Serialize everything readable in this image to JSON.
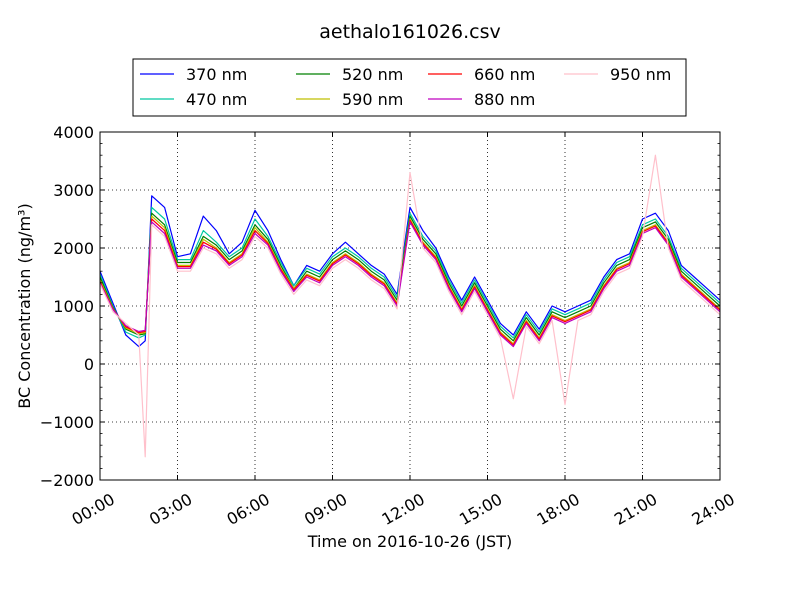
{
  "chart_data": {
    "type": "line",
    "title": "aethalo161026.csv",
    "xlabel": "Time on 2016-10-26 (JST)",
    "ylabel": "BC Concentration (ng/m³)",
    "xlim": [
      0,
      24
    ],
    "ylim": [
      -2000,
      4000
    ],
    "x_tick_labels": [
      "00:00",
      "03:00",
      "06:00",
      "09:00",
      "12:00",
      "15:00",
      "18:00",
      "21:00",
      "24:00"
    ],
    "y_tick_labels": [
      "−2000",
      "−1000",
      "0",
      "1000",
      "2000",
      "3000",
      "4000"
    ],
    "grid": true,
    "legend_position": "top",
    "x_hours": [
      0,
      0.5,
      1,
      1.5,
      1.75,
      2,
      2.5,
      3,
      3.5,
      4,
      4.5,
      5,
      5.5,
      6,
      6.5,
      7,
      7.5,
      8,
      8.5,
      9,
      9.5,
      10,
      10.5,
      11,
      11.5,
      12,
      12.5,
      13,
      13.5,
      14,
      14.5,
      15,
      15.5,
      16,
      16.5,
      17,
      17.5,
      18,
      18.5,
      19,
      19.5,
      20,
      20.5,
      21,
      21.5,
      22,
      22.5,
      23,
      23.5,
      24
    ],
    "series": [
      {
        "name": "370 nm",
        "color": "#0000ff",
        "values": [
          1600,
          1050,
          500,
          300,
          400,
          2900,
          2700,
          1850,
          1900,
          2550,
          2300,
          1900,
          2100,
          2650,
          2300,
          1800,
          1350,
          1700,
          1600,
          1900,
          2100,
          1900,
          1700,
          1550,
          1200,
          2700,
          2300,
          2000,
          1500,
          1100,
          1500,
          1100,
          700,
          500,
          900,
          600,
          1000,
          900,
          1000,
          1100,
          1500,
          1800,
          1900,
          2500,
          2600,
          2300,
          1700,
          1500,
          1300,
          1100
        ]
      },
      {
        "name": "470 nm",
        "color": "#00c8a0",
        "values": [
          1550,
          1000,
          550,
          450,
          500,
          2700,
          2500,
          1800,
          1800,
          2300,
          2100,
          1850,
          2000,
          2500,
          2200,
          1750,
          1350,
          1650,
          1550,
          1850,
          2000,
          1850,
          1650,
          1500,
          1150,
          2600,
          2200,
          1950,
          1450,
          1050,
          1450,
          1050,
          650,
          450,
          850,
          550,
          950,
          850,
          950,
          1050,
          1450,
          1750,
          1850,
          2400,
          2500,
          2200,
          1650,
          1450,
          1250,
          1050
        ]
      },
      {
        "name": "520 nm",
        "color": "#008000",
        "values": [
          1500,
          980,
          600,
          500,
          520,
          2600,
          2400,
          1750,
          1750,
          2200,
          2050,
          1800,
          1950,
          2400,
          2150,
          1700,
          1300,
          1600,
          1500,
          1800,
          1950,
          1800,
          1600,
          1450,
          1100,
          2550,
          2150,
          1900,
          1400,
          1000,
          1400,
          1000,
          600,
          400,
          800,
          500,
          900,
          800,
          900,
          1000,
          1400,
          1700,
          1800,
          2350,
          2450,
          2150,
          1600,
          1400,
          1200,
          1000
        ]
      },
      {
        "name": "590 nm",
        "color": "#bfbf00",
        "values": [
          1450,
          960,
          620,
          520,
          540,
          2550,
          2350,
          1700,
          1700,
          2150,
          2000,
          1750,
          1900,
          2350,
          2100,
          1650,
          1300,
          1550,
          1450,
          1750,
          1900,
          1750,
          1550,
          1400,
          1050,
          2500,
          2100,
          1850,
          1350,
          950,
          1350,
          950,
          550,
          350,
          750,
          450,
          850,
          750,
          850,
          950,
          1350,
          1650,
          1750,
          2300,
          2400,
          2100,
          1550,
          1350,
          1150,
          950
        ]
      },
      {
        "name": "660 nm",
        "color": "#ff0000",
        "values": [
          1420,
          950,
          640,
          540,
          560,
          2500,
          2300,
          1680,
          1680,
          2100,
          1980,
          1730,
          1880,
          2300,
          2080,
          1630,
          1280,
          1530,
          1430,
          1730,
          1880,
          1730,
          1530,
          1380,
          1030,
          2480,
          2080,
          1830,
          1330,
          930,
          1330,
          930,
          530,
          330,
          730,
          430,
          830,
          730,
          830,
          930,
          1330,
          1630,
          1730,
          2280,
          2380,
          2080,
          1530,
          1330,
          1130,
          930
        ]
      },
      {
        "name": "880 nm",
        "color": "#bf00bf",
        "values": [
          1400,
          940,
          660,
          560,
          580,
          2450,
          2250,
          1650,
          1650,
          2050,
          1950,
          1700,
          1850,
          2250,
          2050,
          1600,
          1250,
          1500,
          1400,
          1700,
          1850,
          1700,
          1500,
          1350,
          1000,
          2450,
          2050,
          1800,
          1300,
          900,
          1300,
          900,
          500,
          300,
          700,
          400,
          800,
          700,
          800,
          900,
          1300,
          1600,
          1700,
          2250,
          2350,
          2050,
          1500,
          1300,
          1100,
          900
        ]
      },
      {
        "name": "950 nm",
        "color": "#ffc0cb",
        "values": [
          1380,
          900,
          700,
          500,
          -1600,
          2400,
          2200,
          1600,
          1600,
          2000,
          1900,
          1650,
          1800,
          2200,
          2000,
          1550,
          1200,
          1450,
          1350,
          1650,
          1800,
          1650,
          1450,
          1300,
          950,
          3300,
          2000,
          1750,
          1250,
          850,
          1250,
          850,
          450,
          -600,
          650,
          350,
          750,
          -700,
          750,
          850,
          1250,
          1550,
          1650,
          2200,
          3600,
          2000,
          1450,
          1250,
          1050,
          850
        ]
      }
    ]
  }
}
